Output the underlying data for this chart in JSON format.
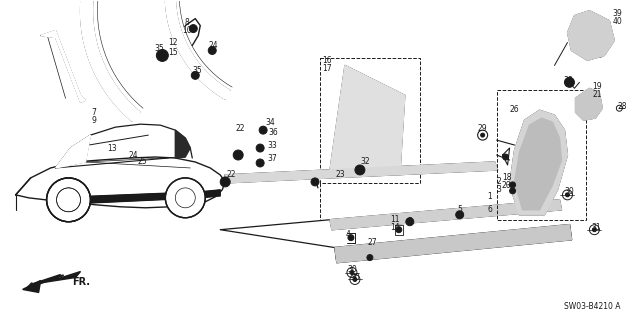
{
  "diagram_ref": "SW03-B4210 A",
  "bg_color": "#ffffff",
  "line_color": "#1a1a1a",
  "fig_width": 6.4,
  "fig_height": 3.19,
  "dpi": 100
}
